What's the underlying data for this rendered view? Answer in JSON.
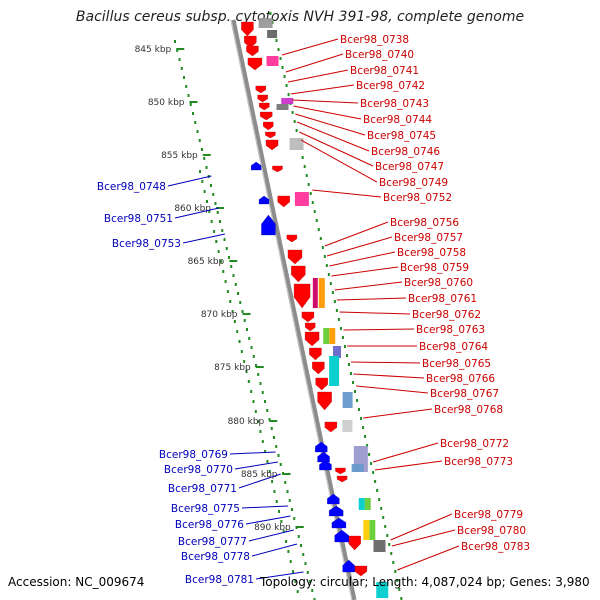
{
  "title": "Bacillus cereus subsp. cytotoxis NVH 391-98, complete genome",
  "footer": {
    "accession": "Accession: NC_009674",
    "stats": "Topology: circular; Length: 4,087,024 bp; Genes: 3,980"
  },
  "colors": {
    "forward_label": "#cc0000",
    "reverse_label": "#0000bb",
    "forward_gene": "#ff0000",
    "reverse_gene": "#0000ff",
    "backbone": "#8c8c8c",
    "tick": "#228b22"
  },
  "scale_ticks": [
    {
      "label": "845 kbp"
    },
    {
      "label": "850 kbp"
    },
    {
      "label": "855 kbp"
    },
    {
      "label": "860 kbp"
    },
    {
      "label": "865 kbp"
    },
    {
      "label": "870 kbp"
    },
    {
      "label": "875 kbp"
    },
    {
      "label": "880 kbp"
    },
    {
      "label": "885 kbp"
    },
    {
      "label": "890 kbp"
    }
  ],
  "right_labels": [
    "Bcer98_0738",
    "Bcer98_0740",
    "Bcer98_0741",
    "Bcer98_0742",
    "Bcer98_0743",
    "Bcer98_0744",
    "Bcer98_0745",
    "Bcer98_0746",
    "Bcer98_0747",
    "Bcer98_0749",
    "Bcer98_0752",
    "Bcer98_0756",
    "Bcer98_0757",
    "Bcer98_0758",
    "Bcer98_0759",
    "Bcer98_0760",
    "Bcer98_0761",
    "Bcer98_0762",
    "Bcer98_0763",
    "Bcer98_0764",
    "Bcer98_0765",
    "Bcer98_0766",
    "Bcer98_0767",
    "Bcer98_0768",
    "Bcer98_0772",
    "Bcer98_0773",
    "Bcer98_0779",
    "Bcer98_0780",
    "Bcer98_0783"
  ],
  "left_labels": [
    "Bcer98_0748",
    "Bcer98_0751",
    "Bcer98_0753",
    "Bcer98_0769",
    "Bcer98_0770",
    "Bcer98_0771",
    "Bcer98_0775",
    "Bcer98_0776",
    "Bcer98_0777",
    "Bcer98_0778",
    "Bcer98_0781"
  ]
}
